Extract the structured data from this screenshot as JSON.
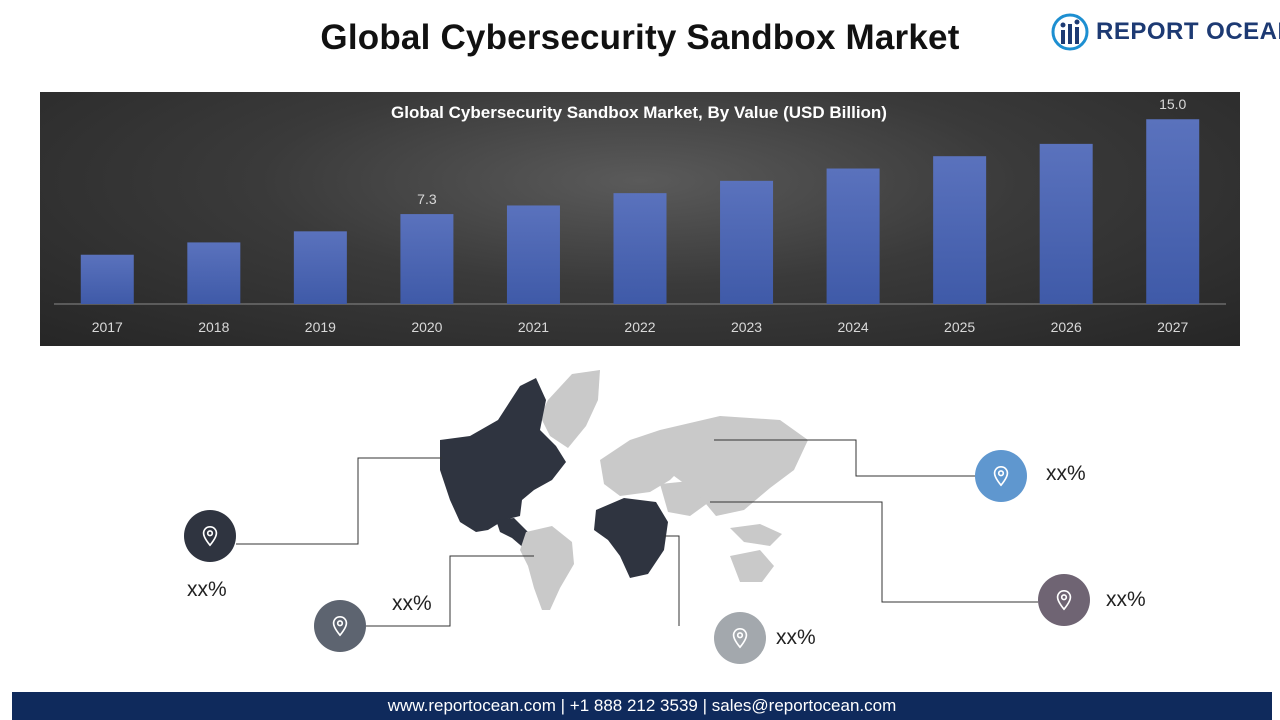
{
  "page_title": "Global Cybersecurity Sandbox Market",
  "logo": {
    "text": "REPORT OCEAN",
    "icon": "globe-bars-icon",
    "color": "#1d3a73"
  },
  "chart_data": {
    "type": "bar",
    "title": "Global Cybersecurity Sandbox Market, By Value (USD Billion)",
    "categories": [
      "2017",
      "2018",
      "2019",
      "2020",
      "2021",
      "2022",
      "2023",
      "2024",
      "2025",
      "2026",
      "2027"
    ],
    "values": [
      4.0,
      5.0,
      5.9,
      7.3,
      8.0,
      9.0,
      10.0,
      11.0,
      12.0,
      13.0,
      15.0
    ],
    "data_labels": {
      "2020": "7.3",
      "2027": "15.0"
    },
    "xlabel": "",
    "ylabel": "",
    "ylim": [
      0,
      16.4
    ],
    "grid": false,
    "legend": "none",
    "bar_color": "#3f5aa8"
  },
  "regions": [
    {
      "id": "north-america",
      "label": "xx%",
      "pin_color": "#2f3440",
      "icon": "location-pin-icon"
    },
    {
      "id": "south-america",
      "label": "xx%",
      "pin_color": "#5d6470",
      "icon": "location-pin-icon"
    },
    {
      "id": "africa",
      "label": "xx%",
      "pin_color": "#a3a8ad",
      "icon": "location-pin-icon"
    },
    {
      "id": "europe",
      "label": "xx%",
      "pin_color": "#5f97cf",
      "icon": "location-pin-icon"
    },
    {
      "id": "asia-pacific",
      "label": "xx%",
      "pin_color": "#6f6473",
      "icon": "location-pin-icon"
    }
  ],
  "footer": {
    "text": "www.reportocean.com | +1 888 212 3539 | sales@reportocean.com"
  }
}
